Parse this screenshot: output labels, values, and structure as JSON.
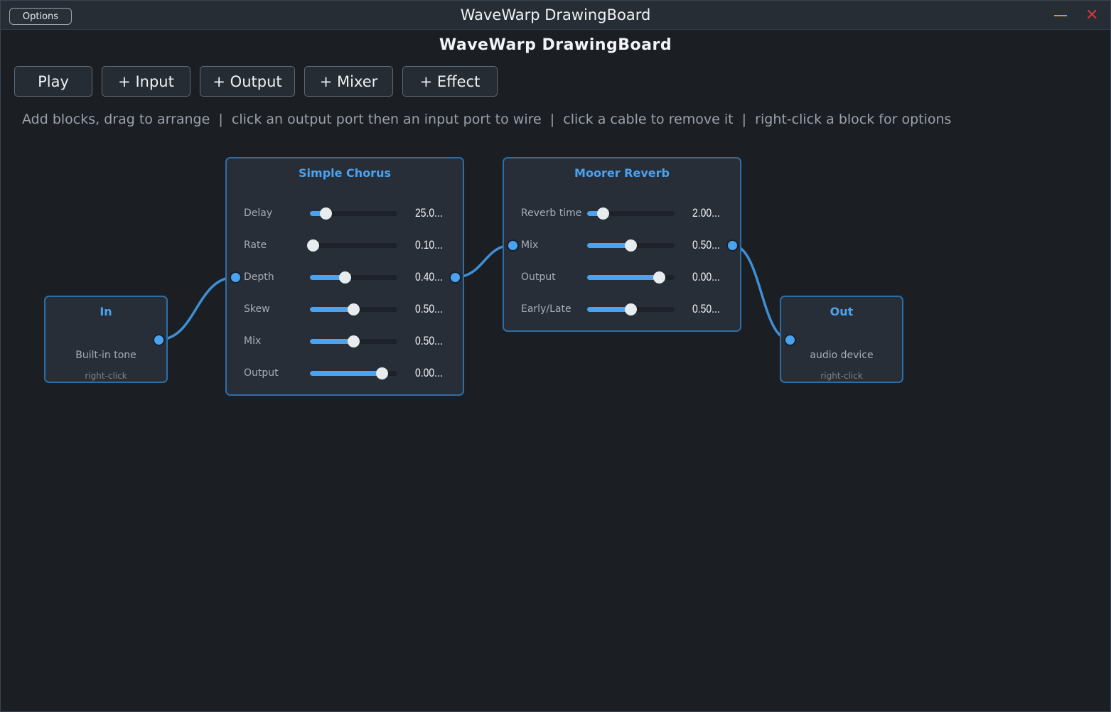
{
  "window": {
    "options_label": "Options",
    "title": "WaveWarp DrawingBoard",
    "minimize_icon": "minimize-icon",
    "close_icon": "close-icon",
    "close_glyph": "✕"
  },
  "app": {
    "title": "WaveWarp DrawingBoard"
  },
  "toolbar": {
    "play_label": "Play",
    "add_input_label": "+ Input",
    "add_output_label": "+ Output",
    "add_mixer_label": "+ Mixer",
    "add_effect_label": "+ Effect"
  },
  "hint": "Add blocks, drag to arrange  |  click an output port then an input port to wire  |  click a cable to remove it  |  right-click a block for options",
  "blocks": {
    "input": {
      "title": "In",
      "subtitle": "Built-in tone",
      "note": "right-click"
    },
    "chorus": {
      "title": "Simple Chorus",
      "params": [
        {
          "label": "Delay",
          "value": "25.0...",
          "level": 0.19
        },
        {
          "label": "Rate",
          "value": "0.10...",
          "level": 0.04
        },
        {
          "label": "Depth",
          "value": "0.40...",
          "level": 0.41
        },
        {
          "label": "Skew",
          "value": "0.50...",
          "level": 0.5
        },
        {
          "label": "Mix",
          "value": "0.50...",
          "level": 0.5
        },
        {
          "label": "Output",
          "value": "0.00...",
          "level": 0.83
        }
      ]
    },
    "reverb": {
      "title": "Moorer Reverb",
      "params": [
        {
          "label": "Reverb time",
          "value": "2.00...",
          "level": 0.19
        },
        {
          "label": "Mix",
          "value": "0.50...",
          "level": 0.5
        },
        {
          "label": "Output",
          "value": "0.00...",
          "level": 0.83
        },
        {
          "label": "Early/Late",
          "value": "0.50...",
          "level": 0.5
        }
      ]
    },
    "output": {
      "title": "Out",
      "subtitle": "audio device",
      "note": "right-click"
    }
  },
  "colors": {
    "accent": "#4aa3f0",
    "background": "#1b1f24",
    "block_bg": "#282e38",
    "block_border": "#2f6da4",
    "close": "#d23a3a",
    "minimize": "#d9962b"
  }
}
